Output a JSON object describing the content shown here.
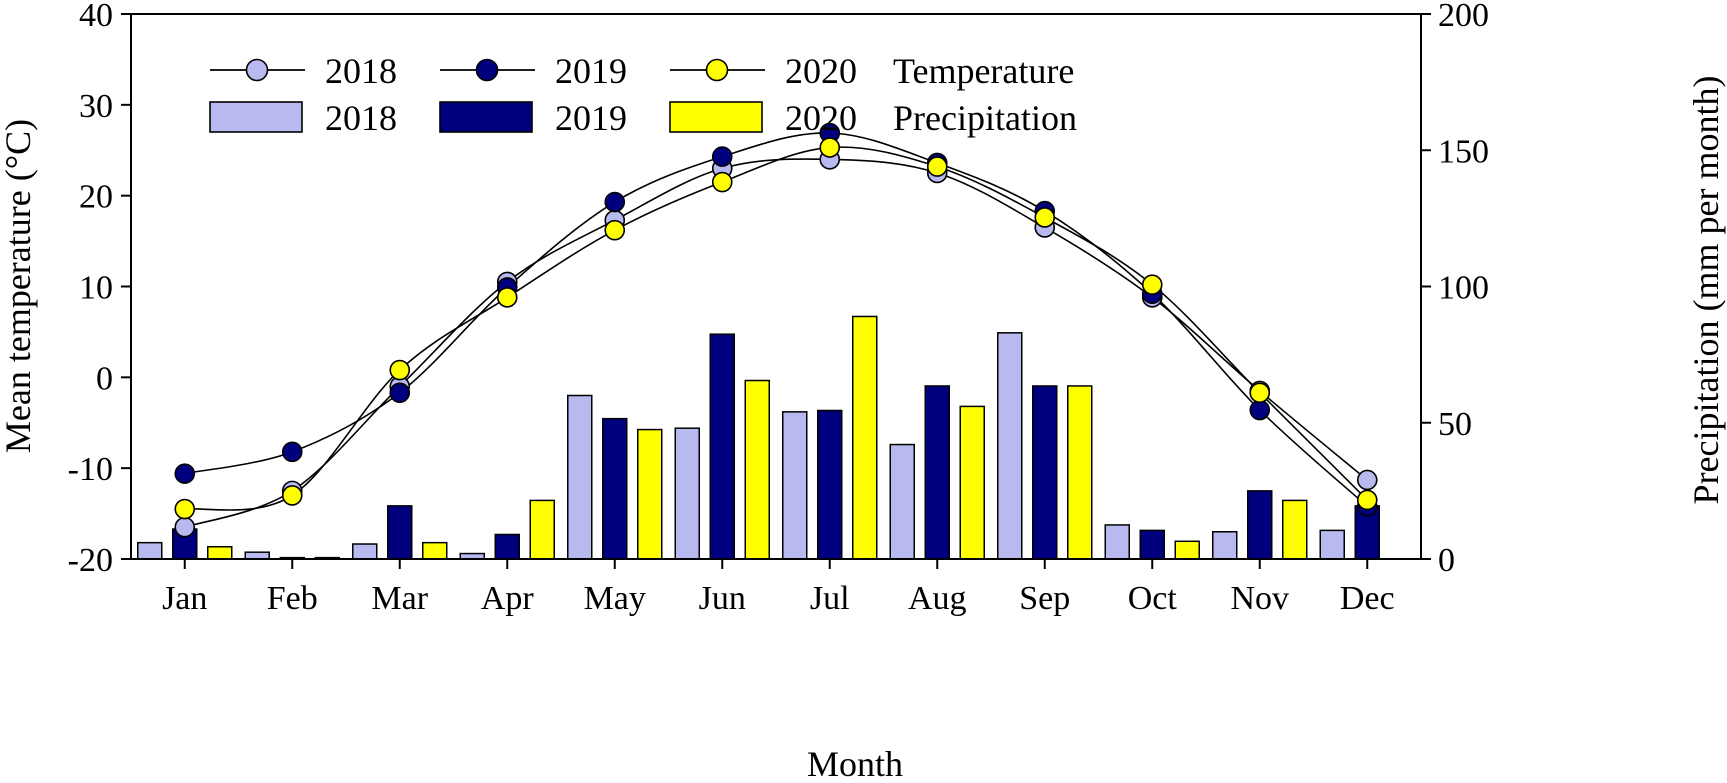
{
  "chart_data": {
    "type": "bar+line",
    "title": "",
    "categories": [
      "Jan",
      "Feb",
      "Mar",
      "Apr",
      "May",
      "Jun",
      "Jul",
      "Aug",
      "Sep",
      "Oct",
      "Nov",
      "Dec"
    ],
    "xlabel": "Month",
    "ylabel_left": "Mean temperature (°C)",
    "ylabel_right": "Precipitation (mm per month)",
    "ylim_left": [
      -20,
      40
    ],
    "ylim_right": [
      0,
      200
    ],
    "yticks_left": [
      "-20",
      "-10",
      "0",
      "10",
      "20",
      "30",
      "40"
    ],
    "yticks_right": [
      "0",
      "50",
      "100",
      "150",
      "200"
    ],
    "temperature": [
      {
        "name": "2018",
        "color": "#b7b9ef",
        "values": [
          -16.5,
          -12.5,
          -1.0,
          10.5,
          17.3,
          23.0,
          24.0,
          22.5,
          16.5,
          8.8,
          -1.5,
          -11.3
        ]
      },
      {
        "name": "2019",
        "color": "#00007f",
        "values": [
          -10.6,
          -8.2,
          -1.7,
          9.9,
          19.3,
          24.3,
          26.9,
          23.6,
          18.3,
          9.2,
          -3.6,
          -14.2
        ]
      },
      {
        "name": "2020",
        "color": "#ffff00",
        "values": [
          -14.5,
          -13.0,
          0.8,
          8.8,
          16.2,
          21.5,
          25.3,
          23.2,
          17.6,
          10.2,
          -1.7,
          -13.5
        ]
      }
    ],
    "precipitation": [
      {
        "name": "2018",
        "color": "#b7b9ef",
        "values": [
          6,
          2.5,
          5.5,
          2,
          60,
          48,
          54,
          42,
          83,
          12.5,
          10,
          10.5
        ]
      },
      {
        "name": "2019",
        "color": "#00007f",
        "values": [
          11,
          0.5,
          19.5,
          9,
          51.5,
          82.5,
          54.5,
          63.5,
          63.5,
          10.5,
          25,
          19.5
        ]
      },
      {
        "name": "2020",
        "color": "#ffff00",
        "values": [
          4.5,
          0.5,
          6,
          21.5,
          47.5,
          65.5,
          89,
          56,
          63.5,
          6.5,
          21.5,
          0
        ]
      }
    ],
    "legend": {
      "years": [
        "2018",
        "2019",
        "2020"
      ],
      "temperature_label": "Temperature",
      "precipitation_label": "Precipitation",
      "placement": "top-left"
    }
  }
}
